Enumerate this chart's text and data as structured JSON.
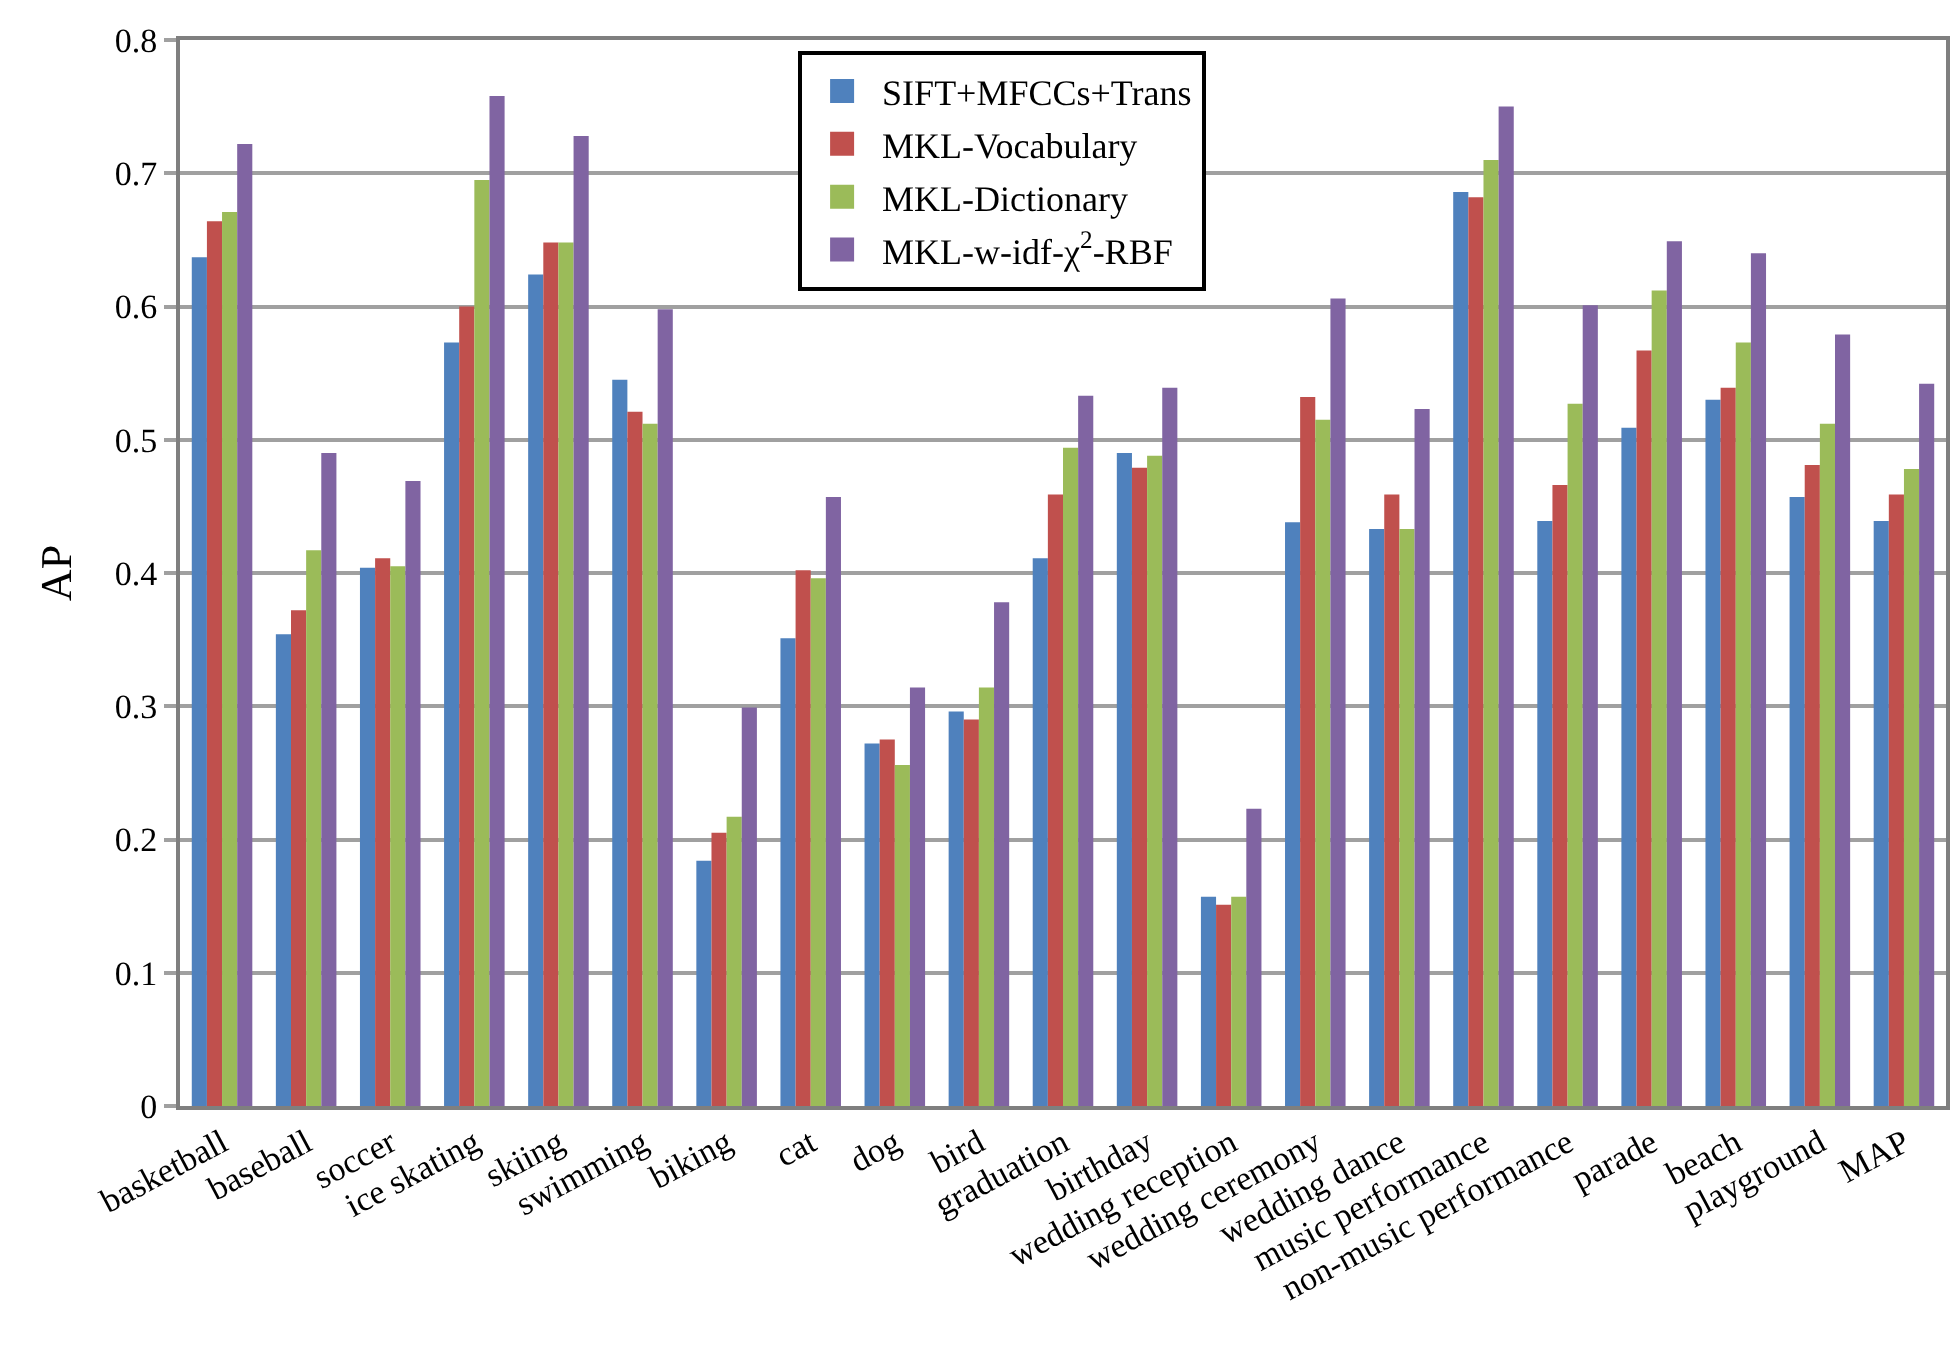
{
  "chart_data": {
    "type": "bar",
    "ylabel": "AP",
    "categories": [
      "basketball",
      "baseball",
      "soccer",
      "ice skating",
      "skiing",
      "swimming",
      "biking",
      "cat",
      "dog",
      "bird",
      "graduation",
      "birthday",
      "wedding reception",
      "wedding ceremony",
      "wedding dance",
      "music performance",
      "non-music performance",
      "parade",
      "beach",
      "playground",
      "MAP"
    ],
    "series": [
      {
        "name": "SIFT+MFCCs+Trans",
        "color": "#4f81bd",
        "values": [
          0.637,
          0.354,
          0.404,
          0.573,
          0.624,
          0.545,
          0.184,
          0.351,
          0.272,
          0.296,
          0.411,
          0.49,
          0.157,
          0.438,
          0.433,
          0.686,
          0.439,
          0.509,
          0.53,
          0.457,
          0.439
        ]
      },
      {
        "name": "MKL-Vocabulary",
        "color": "#c0504d",
        "values": [
          0.664,
          0.372,
          0.411,
          0.6,
          0.648,
          0.521,
          0.205,
          0.402,
          0.275,
          0.29,
          0.459,
          0.479,
          0.151,
          0.532,
          0.459,
          0.682,
          0.466,
          0.567,
          0.539,
          0.481,
          0.459
        ]
      },
      {
        "name": "MKL-Dictionary",
        "color": "#9bbb59",
        "values": [
          0.671,
          0.417,
          0.405,
          0.695,
          0.648,
          0.512,
          0.217,
          0.396,
          0.256,
          0.314,
          0.494,
          0.488,
          0.157,
          0.515,
          0.433,
          0.71,
          0.527,
          0.612,
          0.573,
          0.512,
          0.478
        ]
      },
      {
        "name": "MKL-w-idf-χ$^{2}$-RBF",
        "color": "#8064a2",
        "values": [
          0.722,
          0.49,
          0.469,
          0.758,
          0.728,
          0.598,
          0.299,
          0.457,
          0.314,
          0.378,
          0.533,
          0.539,
          0.223,
          0.606,
          0.523,
          0.75,
          0.601,
          0.649,
          0.64,
          0.579,
          0.542
        ]
      }
    ],
    "ylim": [
      0,
      0.8
    ],
    "yticks": [
      {
        "value": 0,
        "label": "0"
      },
      0.1,
      0.2,
      0.3,
      0.4,
      0.5,
      0.6,
      0.7,
      0.8
    ],
    "grid": "y",
    "legend": "top"
  }
}
